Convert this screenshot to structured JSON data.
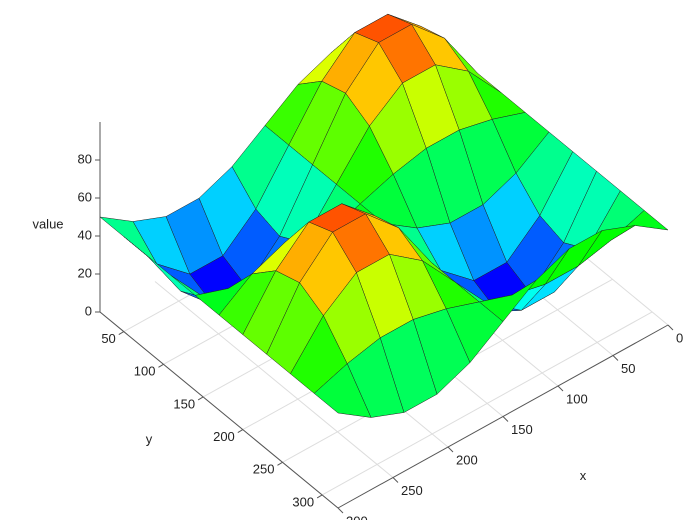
{
  "chart_data": {
    "type": "surface",
    "x_label": "x",
    "y_label": "y",
    "z_label": "value",
    "x": [
      0,
      30,
      60,
      90,
      120,
      150,
      180,
      210,
      240,
      270,
      300
    ],
    "y": [
      20,
      50,
      80,
      110,
      140,
      170,
      200,
      230,
      260,
      290,
      320
    ],
    "z": [
      [
        50,
        62,
        69,
        69,
        62,
        50,
        38,
        31,
        31,
        38,
        50
      ],
      [
        50,
        74,
        90,
        90,
        74,
        50,
        26,
        11,
        11,
        26,
        50
      ],
      [
        50,
        78,
        95,
        95,
        78,
        50,
        22,
        5,
        5,
        22,
        50
      ],
      [
        50,
        71,
        84,
        84,
        71,
        50,
        29,
        16,
        16,
        29,
        50
      ],
      [
        50,
        56,
        60,
        60,
        56,
        50,
        44,
        40,
        40,
        44,
        50
      ],
      [
        50,
        38,
        31,
        31,
        38,
        50,
        62,
        69,
        69,
        62,
        50
      ],
      [
        50,
        26,
        11,
        11,
        26,
        50,
        74,
        90,
        90,
        74,
        50
      ],
      [
        50,
        22,
        5,
        5,
        22,
        50,
        78,
        95,
        95,
        78,
        50
      ],
      [
        50,
        29,
        16,
        16,
        29,
        50,
        71,
        84,
        84,
        71,
        50
      ],
      [
        50,
        44,
        40,
        40,
        44,
        50,
        56,
        60,
        60,
        56,
        50
      ],
      [
        50,
        62,
        69,
        69,
        62,
        50,
        38,
        31,
        31,
        38,
        50
      ]
    ],
    "xlim": [
      0,
      300
    ],
    "ylim": [
      20,
      320
    ],
    "zlim": [
      0,
      100
    ],
    "xticks": [
      0,
      50,
      100,
      150,
      200,
      250,
      300
    ],
    "yticks": [
      50,
      100,
      150,
      200,
      250,
      300
    ],
    "zticks": [
      0,
      20,
      40,
      60,
      80
    ],
    "colormap": "rainbow",
    "grid": true
  }
}
